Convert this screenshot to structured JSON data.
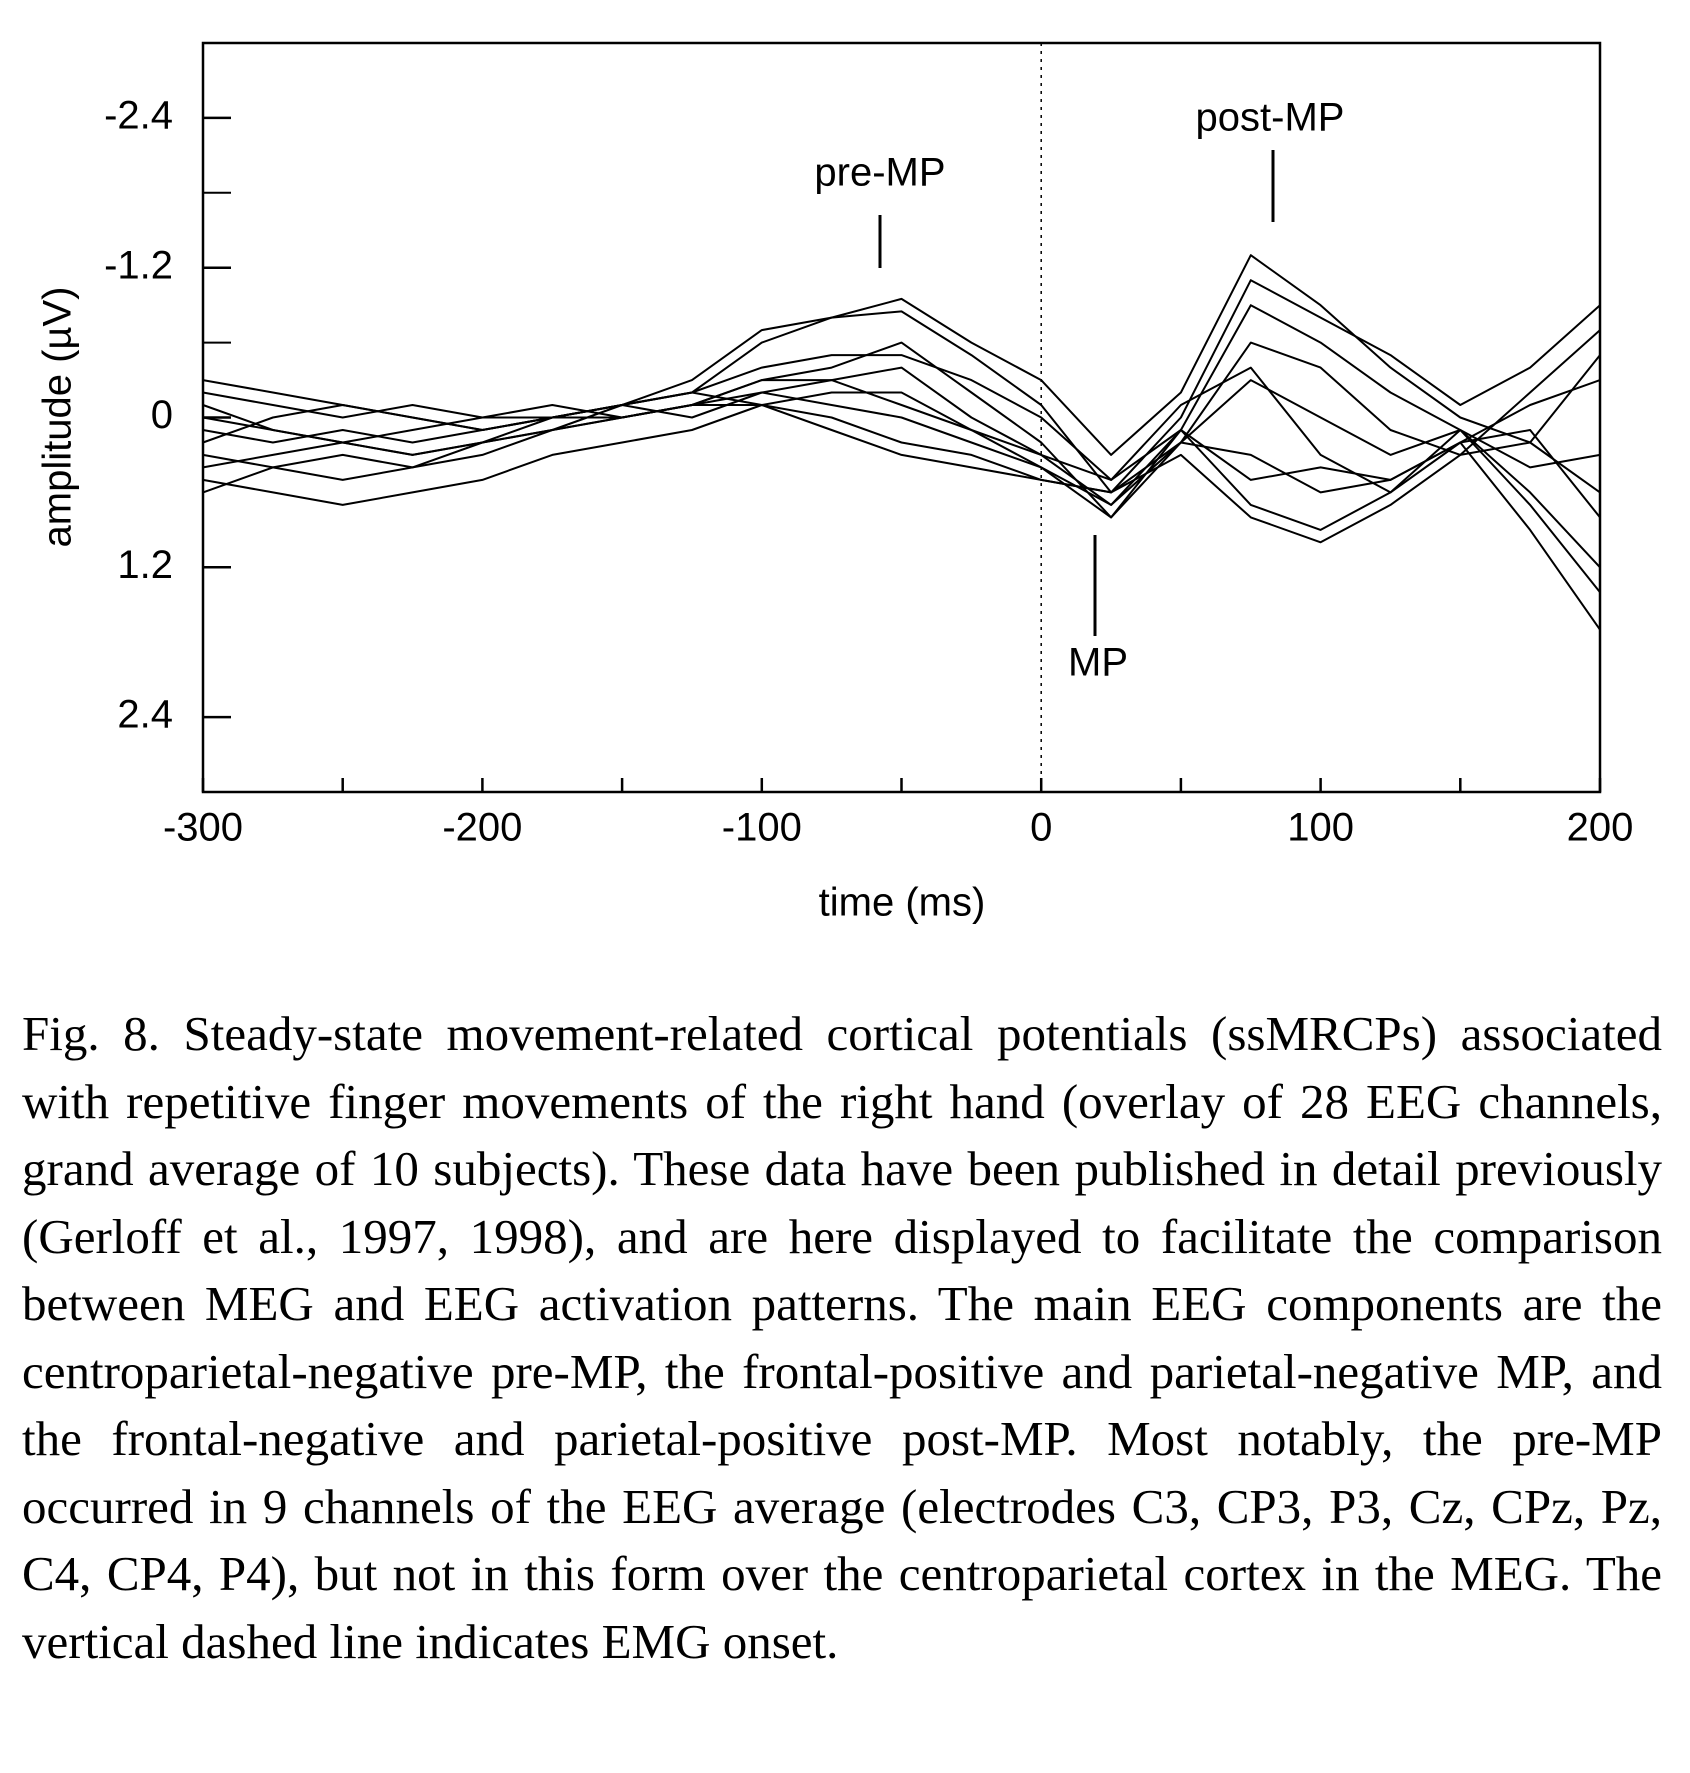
{
  "chart_data": {
    "type": "line",
    "xlabel": "time (ms)",
    "ylabel": "amplitude (µV)",
    "xlim": [
      -300,
      200
    ],
    "ylim": [
      -3,
      3
    ],
    "y_inverted": true,
    "xticks": [
      -300,
      -200,
      -100,
      0,
      100,
      200
    ],
    "xminor": [
      -250,
      -150,
      -50,
      50,
      150
    ],
    "yticks": [
      -2.4,
      -1.2,
      0,
      1.2,
      2.4
    ],
    "yminor": [
      -1.8,
      -0.6
    ],
    "vline_x": 0,
    "annotations": [
      {
        "text": "pre-MP"
      },
      {
        "text": "post-MP"
      },
      {
        "text": "MP"
      }
    ],
    "x": [
      -300,
      -275,
      -250,
      -225,
      -200,
      -175,
      -150,
      -125,
      -100,
      -75,
      -50,
      -25,
      0,
      25,
      50,
      75,
      100,
      125,
      150,
      175,
      200
    ],
    "series": [
      {
        "color": "#000000",
        "values": [
          0.1,
          0.2,
          0.1,
          0.2,
          0.1,
          0.0,
          -0.1,
          -0.2,
          -0.6,
          -0.8,
          -0.95,
          -0.6,
          -0.3,
          0.3,
          -0.2,
          -1.3,
          -0.9,
          -0.4,
          0.0,
          0.2,
          -0.5
        ]
      },
      {
        "color": "#000000",
        "values": [
          -0.2,
          -0.1,
          0.0,
          -0.1,
          0.0,
          0.0,
          -0.1,
          -0.3,
          -0.7,
          -0.8,
          -0.85,
          -0.5,
          -0.1,
          0.6,
          0.0,
          -1.1,
          -0.8,
          -0.5,
          -0.1,
          -0.4,
          -0.9
        ]
      },
      {
        "color": "#000000",
        "values": [
          0.3,
          0.4,
          0.5,
          0.4,
          0.3,
          0.1,
          0.0,
          -0.1,
          -0.3,
          -0.4,
          -0.6,
          -0.2,
          0.2,
          0.8,
          0.1,
          -0.9,
          -0.6,
          -0.2,
          0.1,
          0.4,
          0.3
        ]
      },
      {
        "color": "#000000",
        "values": [
          0.5,
          0.6,
          0.7,
          0.6,
          0.5,
          0.3,
          0.2,
          0.1,
          -0.1,
          -0.2,
          -0.2,
          0.1,
          0.4,
          0.8,
          0.2,
          -0.6,
          -0.4,
          0.1,
          0.3,
          0.2,
          0.6
        ]
      },
      {
        "color": "#000000",
        "values": [
          -0.1,
          0.1,
          0.2,
          0.1,
          0.0,
          -0.1,
          0.0,
          -0.1,
          -0.2,
          -0.1,
          0.0,
          0.2,
          0.4,
          0.7,
          0.2,
          -0.3,
          0.0,
          0.3,
          0.1,
          0.6,
          1.2
        ]
      },
      {
        "color": "#000000",
        "values": [
          0.6,
          0.4,
          0.3,
          0.4,
          0.2,
          0.1,
          0.0,
          -0.1,
          -0.1,
          0.0,
          0.2,
          0.3,
          0.5,
          0.6,
          0.2,
          0.3,
          0.6,
          0.5,
          0.2,
          0.9,
          1.7
        ]
      },
      {
        "color": "#000000",
        "values": [
          -0.3,
          -0.2,
          -0.1,
          0.0,
          0.1,
          0.0,
          -0.1,
          -0.2,
          -0.1,
          0.1,
          0.3,
          0.4,
          0.5,
          0.6,
          0.3,
          0.8,
          1.0,
          0.7,
          0.3,
          -0.2,
          -0.7
        ]
      },
      {
        "color": "#000000",
        "values": [
          0.2,
          0.0,
          -0.1,
          0.0,
          0.1,
          0.0,
          -0.1,
          0.0,
          -0.2,
          -0.3,
          -0.4,
          0.0,
          0.3,
          0.7,
          0.1,
          0.7,
          0.9,
          0.6,
          0.1,
          0.7,
          1.4
        ]
      },
      {
        "color": "#000000",
        "values": [
          0.0,
          0.1,
          0.2,
          0.3,
          0.2,
          0.1,
          -0.1,
          -0.2,
          -0.4,
          -0.5,
          -0.5,
          -0.3,
          0.0,
          0.5,
          -0.1,
          -0.4,
          0.3,
          0.6,
          0.2,
          0.1,
          0.8
        ]
      },
      {
        "color": "#000000",
        "values": [
          0.4,
          0.3,
          0.2,
          0.3,
          0.2,
          0.0,
          0.0,
          -0.1,
          -0.3,
          -0.3,
          -0.1,
          0.1,
          0.3,
          0.5,
          0.1,
          0.5,
          0.4,
          0.5,
          0.2,
          -0.1,
          -0.3
        ]
      }
    ]
  },
  "caption": "Fig. 8. Steady-state movement-related cortical potentials (ssMRCPs) associated with repetitive finger movements of the right hand (overlay of 28 EEG channels, grand average of 10 subjects). These data have been published in detail previously (Gerloff et al., 1997, 1998), and are here displayed to facilitate the comparison between MEG and EEG activation patterns. The main EEG components are the centroparietal-negative pre-MP, the frontal-positive and parietal-negative MP, and the frontal-negative and parietal-positive post-MP. Most notably, the pre-MP occurred in 9 channels of the EEG average (electrodes C3, CP3, P3, Cz, CPz, Pz, C4, CP4, P4), but not in this form over the centroparietal cortex in the MEG. The vertical dashed line indicates EMG onset."
}
